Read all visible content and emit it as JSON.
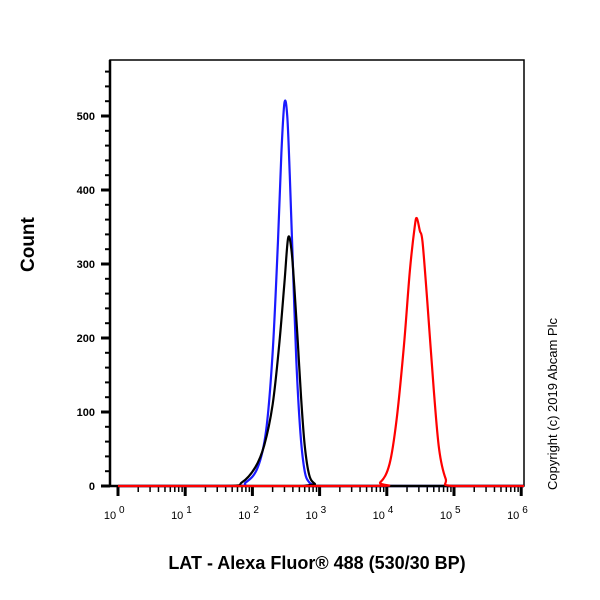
{
  "chart_data": {
    "type": "line",
    "title": "",
    "xlabel": "LAT - Alexa Fluor® 488 (530/30 BP)",
    "ylabel": "Count",
    "xscale": "log",
    "xlim": [
      0.9,
      1000000
    ],
    "ylim": [
      0,
      580
    ],
    "x_ticks": [
      "10^0",
      "10^1",
      "10^2",
      "10^3",
      "10^4",
      "10^5",
      "10^6"
    ],
    "y_ticks": [
      0,
      100,
      200,
      300,
      400,
      500
    ],
    "grid": false,
    "legend": null,
    "annotations": [
      "Copyright (c) 2019 Abcam Plc"
    ],
    "series": [
      {
        "name": "blue",
        "color": "#1a1aff",
        "x": [
          50,
          80,
          120,
          160,
          200,
          240,
          270,
          300,
          330,
          360,
          400,
          450,
          520,
          600,
          700,
          850,
          1000
        ],
        "y": [
          0,
          5,
          25,
          75,
          180,
          330,
          450,
          518,
          500,
          420,
          300,
          170,
          70,
          20,
          5,
          1,
          0
        ]
      },
      {
        "name": "black",
        "color": "#000000",
        "x": [
          40,
          70,
          110,
          150,
          200,
          250,
          300,
          340,
          380,
          420,
          470,
          530,
          600,
          700,
          850,
          1100
        ],
        "y": [
          0,
          5,
          25,
          55,
          110,
          190,
          275,
          335,
          320,
          270,
          200,
          120,
          55,
          15,
          3,
          0
        ]
      },
      {
        "name": "red",
        "color": "#ff0000",
        "x": [
          5000,
          8000,
          11000,
          14000,
          18000,
          22000,
          26000,
          28000,
          31000,
          34000,
          40000,
          50000,
          60000,
          75000,
          95000
        ],
        "y": [
          0,
          5,
          30,
          90,
          190,
          290,
          350,
          362,
          345,
          330,
          250,
          130,
          50,
          10,
          0
        ]
      }
    ]
  },
  "labels": {
    "ylabel": "Count",
    "xlabel": "LAT - Alexa Fluor® 488 (530/30 BP)",
    "copyright": "Copyright (c) 2019 Abcam Plc"
  }
}
